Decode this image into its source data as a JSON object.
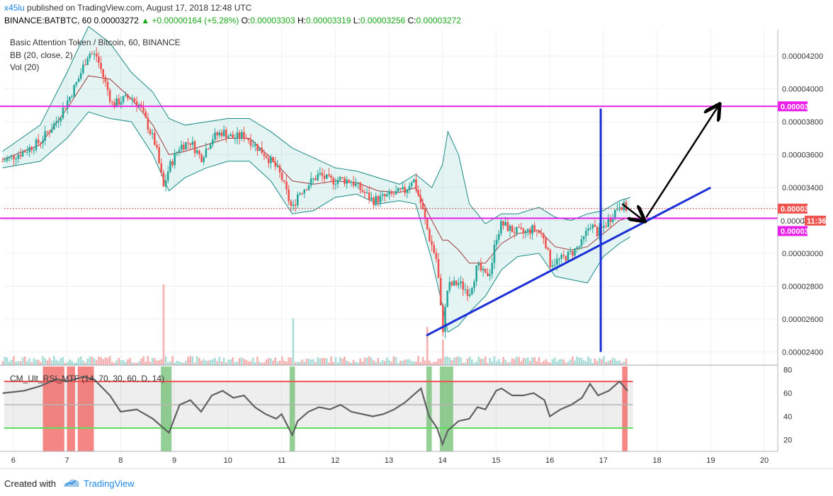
{
  "header": {
    "username": "x45lu",
    "published_text": "published on TradingView.com, August 17, 2018 12:48 UTC",
    "symbol": "BINANCE:BATBTC, 60",
    "last": "0.00003272",
    "change": "+0.00000164 (+5.28%)",
    "o_label": "O:",
    "o": "0.00003303",
    "h_label": "H:",
    "h": "0.00003319",
    "l_label": "L:",
    "l": "0.00003256",
    "c_label": "C:",
    "c": "0.00003272"
  },
  "legend": {
    "title": "Basic Attention Token / Bitcoin, 60, BINANCE",
    "bb": "BB (20, close, 2)",
    "vol": "Vol (20)",
    "osc": "CM_Ult_RSI_MTF (14, 70, 30, 60, D, 14)"
  },
  "footer": {
    "created": "Created with",
    "brand": "TradingView"
  },
  "chart_data": {
    "type": "candlestick",
    "price_axis_labels": [
      "0.00004200",
      "0.00004000",
      "0.00003800",
      "0.00003600",
      "0.00003400",
      "0.00003200",
      "0.00003000",
      "0.00002800",
      "0.00002600",
      "0.00002400"
    ],
    "price_range": [
      2.32e-05,
      4.36e-05
    ],
    "x_axis_labels": [
      "6",
      "7",
      "8",
      "9",
      "10",
      "11",
      "12",
      "13",
      "14",
      "15",
      "16",
      "17",
      "18",
      "19",
      "20"
    ],
    "rsi_axis_labels": [
      "80",
      "60",
      "40",
      "20"
    ],
    "price_close_series": [
      [
        5.8,
        3.56
      ],
      [
        6.2,
        3.62
      ],
      [
        6.5,
        3.68
      ],
      [
        6.8,
        3.8
      ],
      [
        7.0,
        3.92
      ],
      [
        7.2,
        4.05
      ],
      [
        7.4,
        4.22
      ],
      [
        7.55,
        4.2
      ],
      [
        7.7,
        4.05
      ],
      [
        7.85,
        3.9
      ],
      [
        8.0,
        3.93
      ],
      [
        8.2,
        3.95
      ],
      [
        8.35,
        3.9
      ],
      [
        8.5,
        3.78
      ],
      [
        8.65,
        3.66
      ],
      [
        8.8,
        3.4
      ],
      [
        8.9,
        3.52
      ],
      [
        9.1,
        3.65
      ],
      [
        9.3,
        3.68
      ],
      [
        9.5,
        3.58
      ],
      [
        9.7,
        3.7
      ],
      [
        9.9,
        3.74
      ],
      [
        10.1,
        3.7
      ],
      [
        10.3,
        3.72
      ],
      [
        10.5,
        3.66
      ],
      [
        10.7,
        3.6
      ],
      [
        10.9,
        3.52
      ],
      [
        11.0,
        3.46
      ],
      [
        11.2,
        3.26
      ],
      [
        11.3,
        3.36
      ],
      [
        11.5,
        3.42
      ],
      [
        11.7,
        3.48
      ],
      [
        11.9,
        3.44
      ],
      [
        12.1,
        3.45
      ],
      [
        12.3,
        3.44
      ],
      [
        12.5,
        3.38
      ],
      [
        12.7,
        3.32
      ],
      [
        12.9,
        3.34
      ],
      [
        13.1,
        3.36
      ],
      [
        13.3,
        3.38
      ],
      [
        13.45,
        3.46
      ],
      [
        13.6,
        3.3
      ],
      [
        13.75,
        3.1
      ],
      [
        13.9,
        2.95
      ],
      [
        14.0,
        2.52
      ],
      [
        14.1,
        2.8
      ],
      [
        14.3,
        2.82
      ],
      [
        14.5,
        2.76
      ],
      [
        14.65,
        2.92
      ],
      [
        14.8,
        2.86
      ],
      [
        14.9,
        2.9
      ],
      [
        15.0,
        3.1
      ],
      [
        15.1,
        3.18
      ],
      [
        15.3,
        3.14
      ],
      [
        15.5,
        3.12
      ],
      [
        15.7,
        3.15
      ],
      [
        15.9,
        3.1
      ],
      [
        16.0,
        2.94
      ],
      [
        16.2,
        2.96
      ],
      [
        16.4,
        3.0
      ],
      [
        16.6,
        3.06
      ],
      [
        16.75,
        3.18
      ],
      [
        16.9,
        3.12
      ],
      [
        17.1,
        3.2
      ],
      [
        17.3,
        3.3
      ],
      [
        17.45,
        3.27
      ]
    ],
    "bb_upper": [
      [
        5.8,
        3.62
      ],
      [
        6.5,
        3.78
      ],
      [
        7.0,
        4.1
      ],
      [
        7.4,
        4.38
      ],
      [
        7.8,
        4.28
      ],
      [
        8.2,
        4.1
      ],
      [
        8.6,
        3.98
      ],
      [
        8.9,
        3.82
      ],
      [
        9.2,
        3.78
      ],
      [
        9.6,
        3.8
      ],
      [
        10.0,
        3.82
      ],
      [
        10.4,
        3.82
      ],
      [
        10.8,
        3.74
      ],
      [
        11.2,
        3.64
      ],
      [
        11.6,
        3.58
      ],
      [
        12.0,
        3.52
      ],
      [
        12.4,
        3.5
      ],
      [
        12.8,
        3.46
      ],
      [
        13.2,
        3.42
      ],
      [
        13.5,
        3.48
      ],
      [
        13.8,
        3.4
      ],
      [
        14.0,
        3.54
      ],
      [
        14.1,
        3.74
      ],
      [
        14.3,
        3.6
      ],
      [
        14.5,
        3.3
      ],
      [
        14.8,
        3.18
      ],
      [
        15.1,
        3.24
      ],
      [
        15.4,
        3.24
      ],
      [
        15.8,
        3.28
      ],
      [
        16.1,
        3.22
      ],
      [
        16.4,
        3.2
      ],
      [
        16.7,
        3.24
      ],
      [
        17.0,
        3.26
      ],
      [
        17.3,
        3.32
      ],
      [
        17.5,
        3.34
      ]
    ],
    "bb_lower": [
      [
        5.8,
        3.52
      ],
      [
        6.5,
        3.56
      ],
      [
        7.0,
        3.7
      ],
      [
        7.4,
        3.86
      ],
      [
        7.8,
        3.82
      ],
      [
        8.2,
        3.8
      ],
      [
        8.6,
        3.6
      ],
      [
        8.9,
        3.38
      ],
      [
        9.2,
        3.46
      ],
      [
        9.6,
        3.52
      ],
      [
        10.0,
        3.56
      ],
      [
        10.4,
        3.56
      ],
      [
        10.8,
        3.44
      ],
      [
        11.2,
        3.24
      ],
      [
        11.6,
        3.26
      ],
      [
        12.0,
        3.34
      ],
      [
        12.4,
        3.36
      ],
      [
        12.8,
        3.3
      ],
      [
        13.2,
        3.32
      ],
      [
        13.5,
        3.3
      ],
      [
        13.8,
        2.96
      ],
      [
        14.0,
        2.68
      ],
      [
        14.1,
        2.52
      ],
      [
        14.3,
        2.56
      ],
      [
        14.5,
        2.64
      ],
      [
        14.8,
        2.74
      ],
      [
        15.1,
        2.9
      ],
      [
        15.4,
        2.98
      ],
      [
        15.8,
        3.0
      ],
      [
        16.1,
        2.86
      ],
      [
        16.4,
        2.84
      ],
      [
        16.7,
        2.82
      ],
      [
        17.0,
        2.98
      ],
      [
        17.3,
        3.06
      ],
      [
        17.5,
        3.1
      ]
    ],
    "bb_basis": [
      [
        5.8,
        3.57
      ],
      [
        6.5,
        3.66
      ],
      [
        7.0,
        3.88
      ],
      [
        7.4,
        4.08
      ],
      [
        7.8,
        4.06
      ],
      [
        8.2,
        3.94
      ],
      [
        8.6,
        3.78
      ],
      [
        8.9,
        3.6
      ],
      [
        9.2,
        3.62
      ],
      [
        9.6,
        3.66
      ],
      [
        10.0,
        3.7
      ],
      [
        10.4,
        3.7
      ],
      [
        10.8,
        3.58
      ],
      [
        11.2,
        3.44
      ],
      [
        11.6,
        3.42
      ],
      [
        12.0,
        3.44
      ],
      [
        12.4,
        3.43
      ],
      [
        12.8,
        3.38
      ],
      [
        13.2,
        3.37
      ],
      [
        13.5,
        3.4
      ],
      [
        13.8,
        3.2
      ],
      [
        14.0,
        3.08
      ],
      [
        14.1,
        3.08
      ],
      [
        14.3,
        3.02
      ],
      [
        14.5,
        2.94
      ],
      [
        14.8,
        2.94
      ],
      [
        15.1,
        3.06
      ],
      [
        15.4,
        3.12
      ],
      [
        15.8,
        3.14
      ],
      [
        16.1,
        3.04
      ],
      [
        16.4,
        3.02
      ],
      [
        16.7,
        3.04
      ],
      [
        17.0,
        3.12
      ],
      [
        17.3,
        3.2
      ],
      [
        17.5,
        3.22
      ]
    ],
    "horizontal_levels": [
      {
        "value": "0.00003894",
        "color": "#e91ee9"
      },
      {
        "value": "0.00003213",
        "color": "#e91ee9"
      }
    ],
    "current_price_label": "0.00003272",
    "countdown_label": "11:36",
    "countdown_price_partial": "0.0000",
    "annotations": [
      {
        "type": "trendline",
        "color": "#1a2fd6",
        "from": [
          13.7,
          2.5
        ],
        "to": [
          19.0,
          3.4
        ]
      },
      {
        "type": "vertical_line",
        "color": "#1a2fd6",
        "x": 16.95,
        "from": 2.4,
        "to": 3.88
      },
      {
        "type": "arrow",
        "color": "#000000",
        "from": [
          17.35,
          3.3
        ],
        "to": [
          17.75,
          3.2
        ]
      },
      {
        "type": "arrow",
        "color": "#000000",
        "from": [
          17.8,
          3.22
        ],
        "to": [
          19.15,
          3.9
        ]
      }
    ],
    "volume_spikes": [
      [
        8.8,
        0.95
      ],
      [
        11.2,
        0.55
      ],
      [
        13.7,
        0.45
      ],
      [
        14.0,
        0.3
      ]
    ],
    "rsi_series": [
      [
        5.8,
        60
      ],
      [
        6.2,
        62
      ],
      [
        6.5,
        66
      ],
      [
        6.8,
        72
      ],
      [
        7.0,
        70
      ],
      [
        7.3,
        74
      ],
      [
        7.5,
        72
      ],
      [
        7.8,
        58
      ],
      [
        8.0,
        44
      ],
      [
        8.3,
        46
      ],
      [
        8.6,
        38
      ],
      [
        8.8,
        30
      ],
      [
        8.9,
        26
      ],
      [
        9.1,
        50
      ],
      [
        9.3,
        54
      ],
      [
        9.5,
        44
      ],
      [
        9.7,
        58
      ],
      [
        9.9,
        62
      ],
      [
        10.1,
        56
      ],
      [
        10.3,
        58
      ],
      [
        10.5,
        48
      ],
      [
        10.7,
        42
      ],
      [
        10.9,
        38
      ],
      [
        11.0,
        42
      ],
      [
        11.2,
        24
      ],
      [
        11.3,
        36
      ],
      [
        11.5,
        44
      ],
      [
        11.7,
        48
      ],
      [
        11.9,
        46
      ],
      [
        12.1,
        50
      ],
      [
        12.3,
        44
      ],
      [
        12.5,
        42
      ],
      [
        12.7,
        40
      ],
      [
        12.9,
        42
      ],
      [
        13.1,
        46
      ],
      [
        13.3,
        52
      ],
      [
        13.5,
        60
      ],
      [
        13.6,
        64
      ],
      [
        13.75,
        40
      ],
      [
        13.9,
        30
      ],
      [
        14.0,
        16
      ],
      [
        14.1,
        28
      ],
      [
        14.3,
        36
      ],
      [
        14.5,
        38
      ],
      [
        14.65,
        48
      ],
      [
        14.8,
        46
      ],
      [
        15.0,
        62
      ],
      [
        15.1,
        64
      ],
      [
        15.3,
        58
      ],
      [
        15.5,
        58
      ],
      [
        15.7,
        60
      ],
      [
        15.9,
        54
      ],
      [
        16.0,
        40
      ],
      [
        16.2,
        46
      ],
      [
        16.4,
        50
      ],
      [
        16.6,
        56
      ],
      [
        16.75,
        68
      ],
      [
        16.9,
        58
      ],
      [
        17.1,
        62
      ],
      [
        17.3,
        70
      ],
      [
        17.45,
        62
      ]
    ],
    "rsi_levels": [
      70,
      50,
      30
    ],
    "rsi_range": [
      10,
      84
    ]
  }
}
